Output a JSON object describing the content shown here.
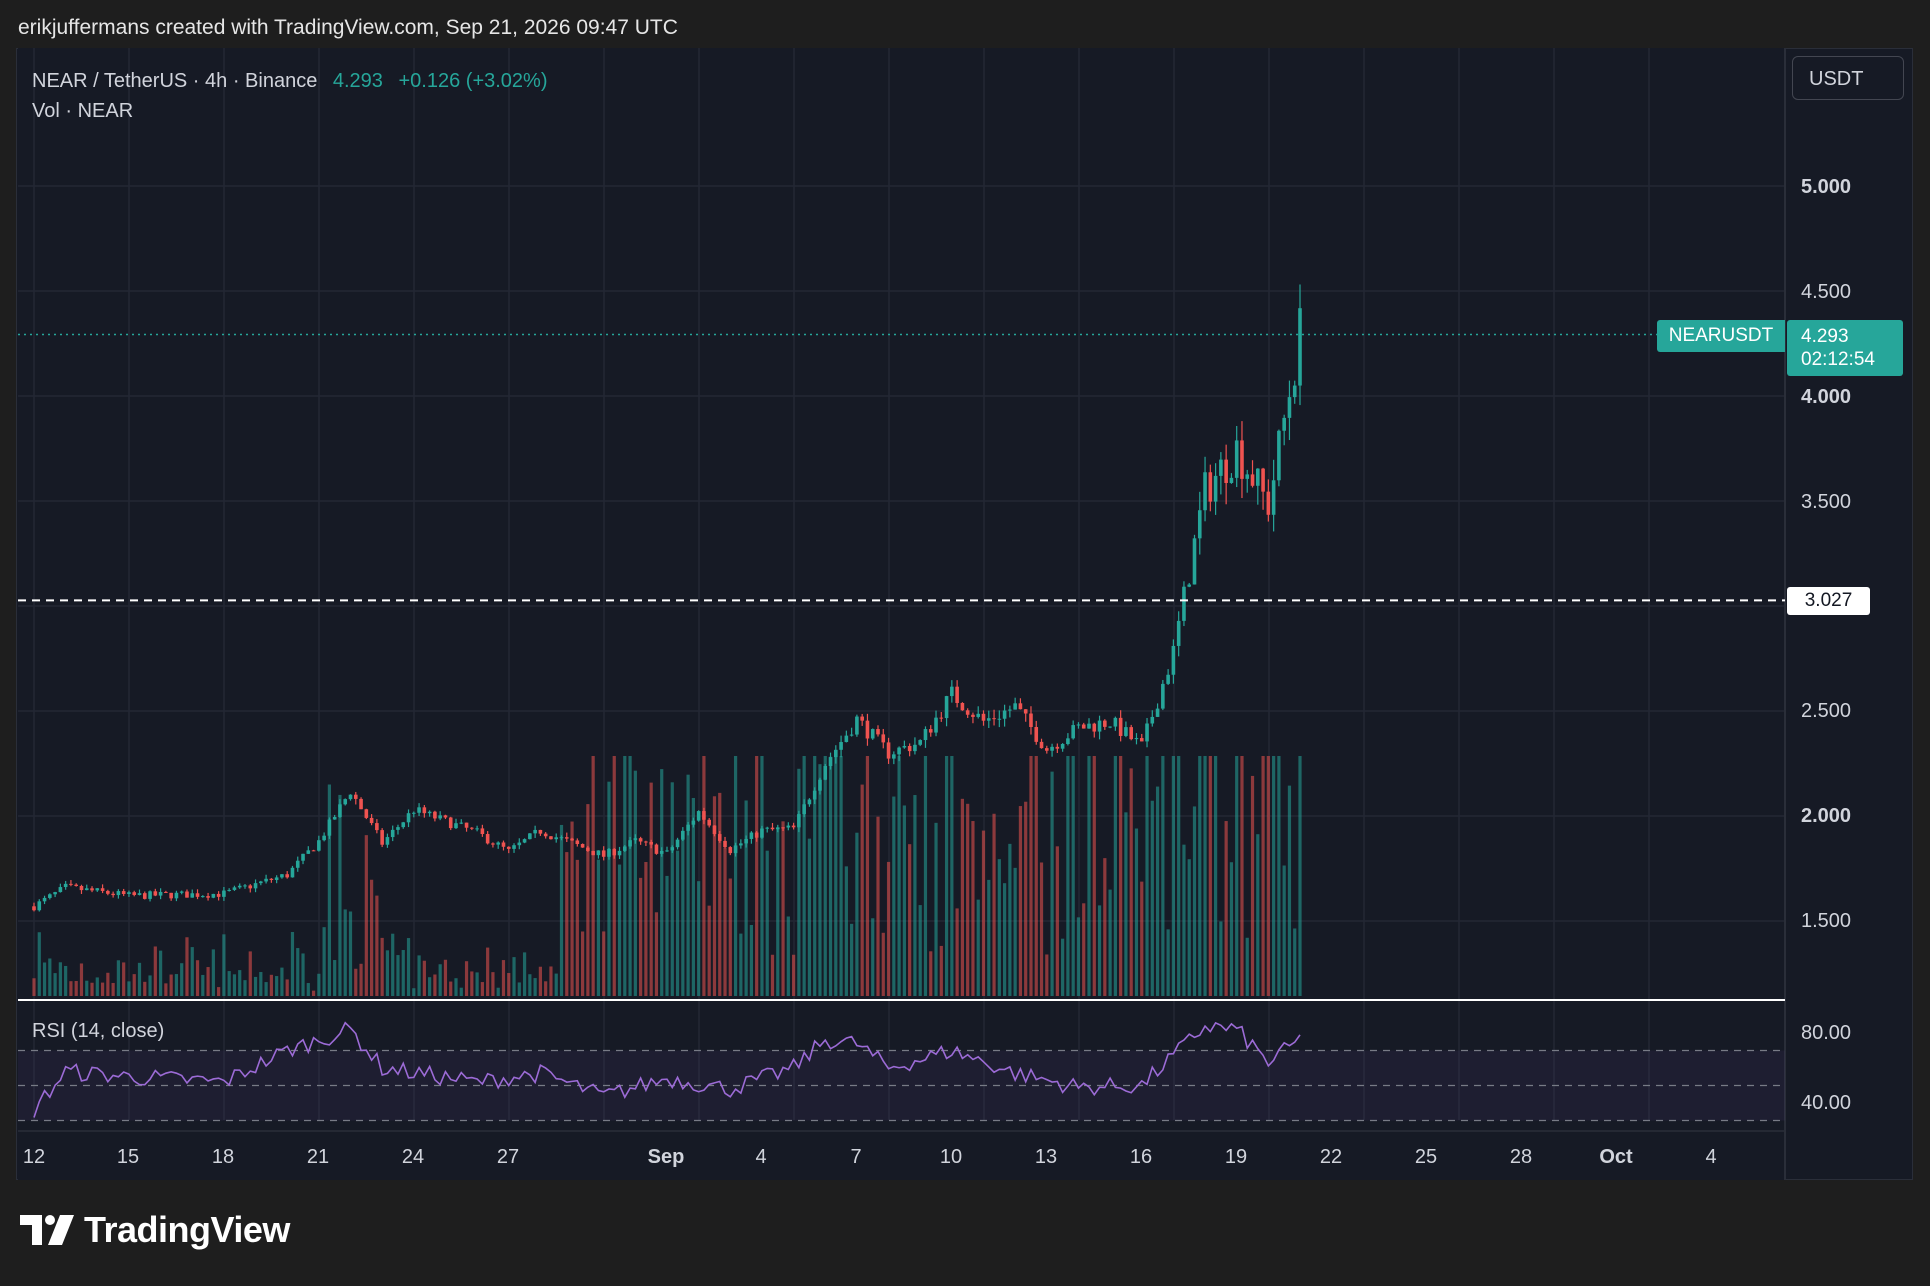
{
  "caption": "erikjuffermans created with TradingView.com, Sep 21, 2026 09:47 UTC",
  "legend": {
    "symbol_line": "NEAR / TetherUS · 4h · Binance",
    "last_price": "4.293",
    "change": "+0.126 (+3.02%)",
    "volume_line": "Vol · NEAR"
  },
  "currency_button": "USDT",
  "price_axis": [
    "5.000",
    "4.500",
    "4.000",
    "3.500",
    "2.500",
    "2.000",
    "1.500"
  ],
  "rsi": {
    "label": "RSI (14, close)",
    "axis": [
      "80.00",
      "40.00"
    ]
  },
  "time_axis": [
    "12",
    "15",
    "18",
    "21",
    "24",
    "27",
    "Sep",
    "4",
    "7",
    "10",
    "13",
    "16",
    "19",
    "22",
    "25",
    "28",
    "Oct",
    "4"
  ],
  "symbol_tag": "NEARUSDT",
  "price_tag": {
    "price": "4.293",
    "countdown": "02:12:54"
  },
  "level_tag": "3.027",
  "brand": "TradingView",
  "colors": {
    "up": "#26a69a",
    "down": "#ef5350",
    "rsi_line": "#9c6bd6",
    "background": "#161a25"
  },
  "chart_data": {
    "type": "candlestick",
    "symbol": "NEAR / TetherUS",
    "interval": "4h",
    "exchange": "Binance",
    "y_range": [
      1.0,
      5.5
    ],
    "horizontal_level": 3.027,
    "last_price": 4.293,
    "close_path_keypoints": [
      {
        "date": "Aug 12",
        "close": 1.57
      },
      {
        "date": "Aug 13",
        "close": 1.66
      },
      {
        "date": "Aug 15",
        "close": 1.62
      },
      {
        "date": "Aug 18",
        "close": 1.63
      },
      {
        "date": "Aug 20",
        "close": 1.72
      },
      {
        "date": "Aug 21",
        "close": 1.88
      },
      {
        "date": "Aug 22",
        "close": 2.12
      },
      {
        "date": "Aug 23",
        "close": 1.87
      },
      {
        "date": "Aug 24",
        "close": 2.03
      },
      {
        "date": "Aug 26",
        "close": 1.92
      },
      {
        "date": "Aug 27",
        "close": 1.83
      },
      {
        "date": "Aug 28",
        "close": 1.93
      },
      {
        "date": "Aug 30",
        "close": 1.81
      },
      {
        "date": "Aug 31",
        "close": 1.88
      },
      {
        "date": "Sep 1",
        "close": 1.82
      },
      {
        "date": "Sep 2",
        "close": 2.02
      },
      {
        "date": "Sep 3",
        "close": 1.84
      },
      {
        "date": "Sep 4",
        "close": 1.93
      },
      {
        "date": "Sep 5",
        "close": 1.94
      },
      {
        "date": "Sep 6",
        "close": 2.25
      },
      {
        "date": "Sep 7",
        "close": 2.46
      },
      {
        "date": "Sep 8",
        "close": 2.3
      },
      {
        "date": "Sep 9",
        "close": 2.35
      },
      {
        "date": "Sep 10",
        "close": 2.58
      },
      {
        "date": "Sep 11",
        "close": 2.45
      },
      {
        "date": "Sep 12",
        "close": 2.52
      },
      {
        "date": "Sep 13",
        "close": 2.32
      },
      {
        "date": "Sep 14",
        "close": 2.42
      },
      {
        "date": "Sep 15",
        "close": 2.45
      },
      {
        "date": "Sep 16",
        "close": 2.33
      },
      {
        "date": "Sep 17",
        "close": 2.78
      },
      {
        "date": "Sep 18",
        "close": 3.55
      },
      {
        "date": "Sep 19",
        "close": 3.75
      },
      {
        "date": "Sep 20",
        "close": 3.48
      },
      {
        "date": "Sep 21",
        "close": 4.293
      }
    ],
    "rsi_range": [
      20,
      100
    ],
    "rsi_levels": [
      70,
      50,
      30
    ],
    "rsi_keypoints": [
      {
        "date": "Aug 12",
        "rsi": 36
      },
      {
        "date": "Aug 13",
        "rsi": 58
      },
      {
        "date": "Aug 15",
        "rsi": 55
      },
      {
        "date": "Aug 18",
        "rsi": 52
      },
      {
        "date": "Aug 20",
        "rsi": 70
      },
      {
        "date": "Aug 22",
        "rsi": 82
      },
      {
        "date": "Aug 23",
        "rsi": 60
      },
      {
        "date": "Aug 26",
        "rsi": 52
      },
      {
        "date": "Aug 28",
        "rsi": 57
      },
      {
        "date": "Aug 30",
        "rsi": 44
      },
      {
        "date": "Sep 1",
        "rsi": 54
      },
      {
        "date": "Sep 3",
        "rsi": 48
      },
      {
        "date": "Sep 5",
        "rsi": 60
      },
      {
        "date": "Sep 6",
        "rsi": 76
      },
      {
        "date": "Sep 7",
        "rsi": 74
      },
      {
        "date": "Sep 8",
        "rsi": 60
      },
      {
        "date": "Sep 10",
        "rsi": 70
      },
      {
        "date": "Sep 12",
        "rsi": 57
      },
      {
        "date": "Sep 14",
        "rsi": 49
      },
      {
        "date": "Sep 16",
        "rsi": 50
      },
      {
        "date": "Sep 18",
        "rsi": 84
      },
      {
        "date": "Sep 19",
        "rsi": 82
      },
      {
        "date": "Sep 20",
        "rsi": 63
      },
      {
        "date": "Sep 21",
        "rsi": 76
      }
    ]
  }
}
